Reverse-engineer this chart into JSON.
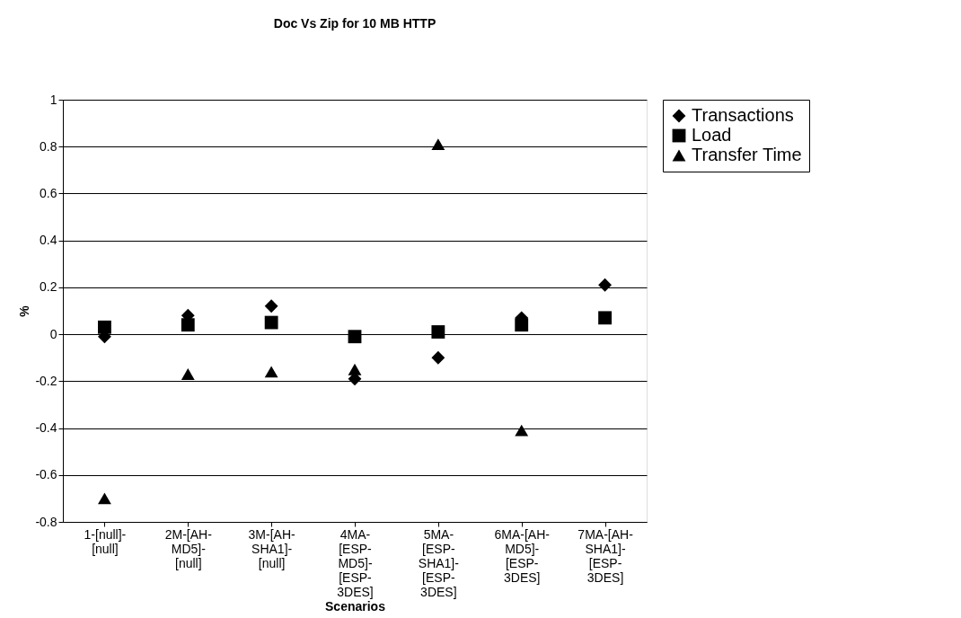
{
  "chart_data": {
    "type": "scatter",
    "title": "Doc Vs Zip for 10 MB HTTP",
    "xlabel": "Scenarios",
    "ylabel": "%",
    "categories": [
      "1-[null]-[null]",
      "2M-[AH-MD5]-[null]",
      "3M-[AH-SHA1]-[null]",
      "4MA-[ESP-MD5]-[ESP-3DES]",
      "5MA-[ESP-SHA1]-[ESP-3DES]",
      "6MA-[AH-MD5]-[ESP-3DES]",
      "7MA-[AH-SHA1]-[ESP-3DES]"
    ],
    "series": [
      {
        "name": "Transactions",
        "color": "#000000",
        "marker": "diamond",
        "values": [
          -0.01,
          0.08,
          0.12,
          -0.19,
          -0.1,
          0.07,
          0.21
        ]
      },
      {
        "name": "Load",
        "color": "#000000",
        "marker": "square",
        "values": [
          0.03,
          0.04,
          0.05,
          -0.01,
          0.01,
          0.04,
          0.07
        ]
      },
      {
        "name": "Transfer Time",
        "color": "#000000",
        "marker": "triangle",
        "values": [
          -0.7,
          -0.17,
          -0.16,
          -0.15,
          0.81,
          -0.41,
          null
        ]
      }
    ],
    "ylim": [
      -0.8,
      1
    ],
    "yticks": [
      -0.8,
      -0.6,
      -0.4,
      -0.2,
      0,
      0.2,
      0.4,
      0.6,
      0.8,
      1
    ],
    "grid": "y",
    "legend": "right"
  }
}
